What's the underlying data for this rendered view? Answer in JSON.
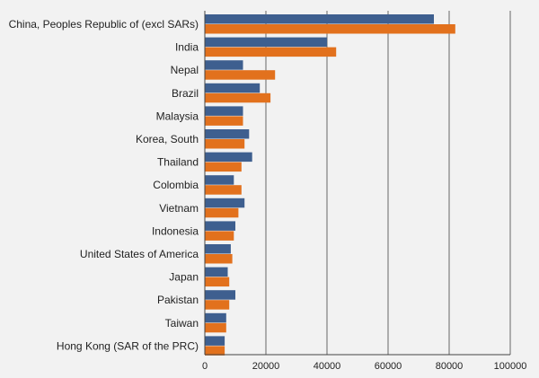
{
  "chart_data": {
    "type": "bar",
    "orientation": "horizontal",
    "categories": [
      "China, Peoples Republic of (excl SARs)",
      "India",
      "Nepal",
      "Brazil",
      "Malaysia",
      "Korea, South",
      "Thailand",
      "Colombia",
      "Vietnam",
      "Indonesia",
      "United States of America",
      "Japan",
      "Pakistan",
      "Taiwan",
      "Hong Kong (SAR of the PRC)"
    ],
    "series": [
      {
        "color": "#3e5f8f",
        "values": [
          75000,
          40000,
          12500,
          18000,
          12500,
          14500,
          15500,
          9500,
          13000,
          10000,
          8500,
          7500,
          10000,
          7000,
          6500
        ]
      },
      {
        "color": "#e2711d",
        "values": [
          82000,
          43000,
          23000,
          21500,
          12500,
          13000,
          12000,
          12000,
          11000,
          9500,
          9000,
          8000,
          8000,
          7000,
          6500
        ]
      }
    ],
    "xlim": [
      0,
      100000
    ],
    "xticks": [
      "0",
      "20000",
      "40000",
      "60000",
      "80000",
      "100000"
    ],
    "xlabel": "",
    "ylabel": "",
    "title": "",
    "grid": true,
    "legend": "none"
  }
}
